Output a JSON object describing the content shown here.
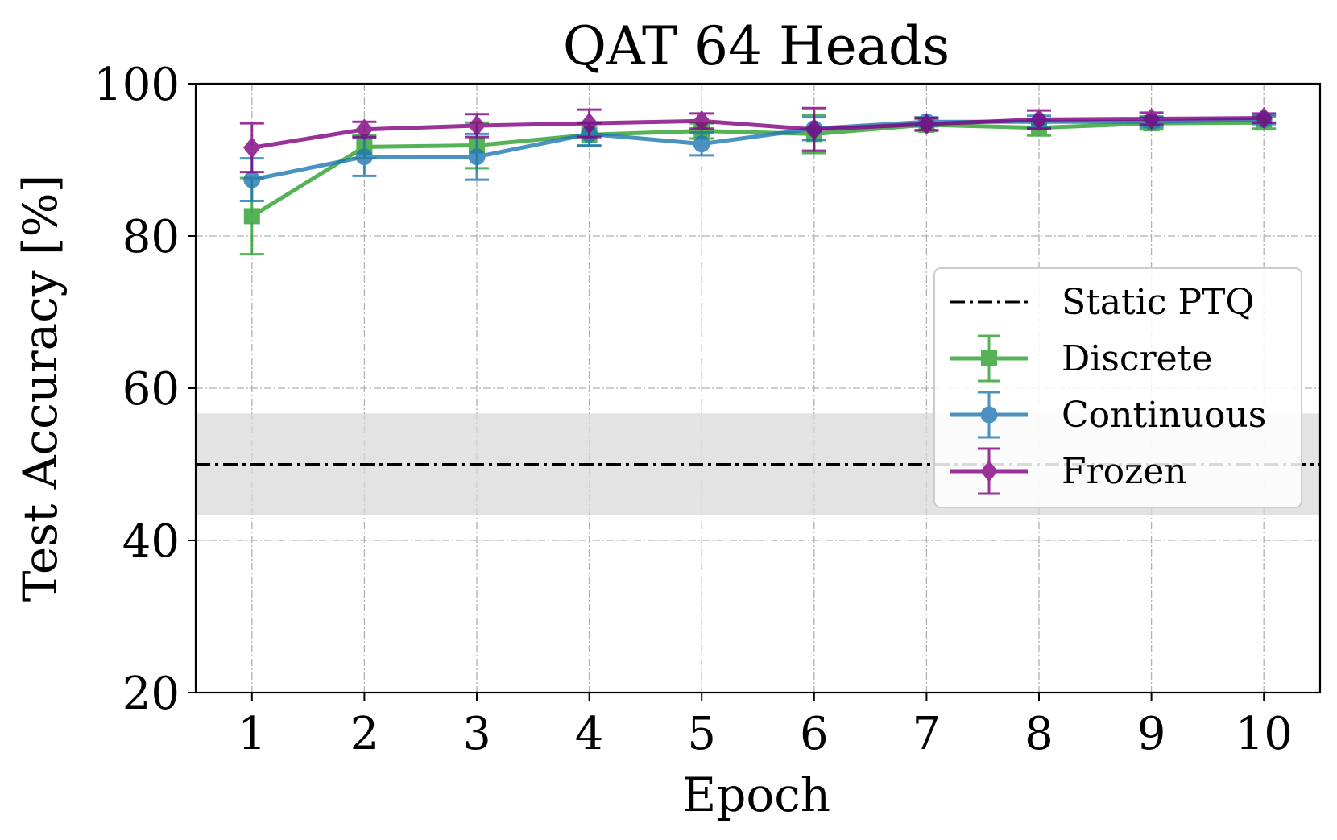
{
  "chart_data": {
    "type": "line",
    "title": "QAT 64 Heads",
    "xlabel": "Epoch",
    "ylabel": "Test Accuracy [%]",
    "x": [
      1,
      2,
      3,
      4,
      5,
      6,
      7,
      8,
      9,
      10
    ],
    "x_tick_labels": [
      "1",
      "2",
      "3",
      "4",
      "5",
      "6",
      "7",
      "8",
      "9",
      "10"
    ],
    "xlim": [
      0.5,
      10.5
    ],
    "ylim": [
      20,
      100
    ],
    "y_ticks": [
      20,
      40,
      60,
      80,
      100
    ],
    "y_tick_labels": [
      "20",
      "40",
      "60",
      "80",
      "100"
    ],
    "grid": true,
    "legend_position": "center-right",
    "baseline": {
      "name": "Static PTQ",
      "value": 50.0,
      "band": [
        43.3,
        56.7
      ],
      "color": "#000000",
      "band_color": "#d9d9d9"
    },
    "series": [
      {
        "name": "Discrete",
        "marker": "square",
        "color": "#2ca02c",
        "values": [
          82.6,
          91.7,
          91.9,
          93.3,
          93.8,
          93.4,
          94.6,
          94.2,
          94.8,
          94.9
        ],
        "errors": [
          5.0,
          1.5,
          3.0,
          1.5,
          1.0,
          2.5,
          0.8,
          1.0,
          0.8,
          0.8
        ]
      },
      {
        "name": "Continuous",
        "marker": "circle",
        "color": "#1f77b4",
        "values": [
          87.4,
          90.4,
          90.4,
          93.4,
          92.1,
          94.1,
          95.0,
          95.0,
          95.0,
          95.3
        ],
        "errors": [
          2.8,
          2.5,
          3.0,
          1.5,
          1.5,
          1.5,
          0.6,
          0.8,
          0.7,
          0.6
        ]
      },
      {
        "name": "Frozen",
        "marker": "diamond",
        "color": "#800080",
        "values": [
          91.6,
          94.0,
          94.5,
          94.8,
          95.1,
          94.0,
          94.7,
          95.3,
          95.4,
          95.5
        ],
        "errors": [
          3.2,
          1.0,
          1.5,
          1.8,
          1.0,
          2.8,
          0.8,
          1.2,
          0.8,
          0.6
        ]
      }
    ]
  }
}
